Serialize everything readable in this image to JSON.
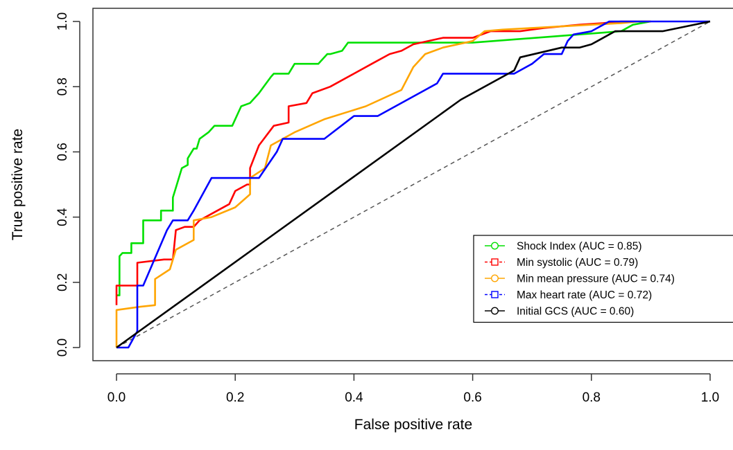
{
  "chart_data": {
    "type": "line",
    "title": "",
    "xlabel": "False positive rate",
    "ylabel": "True positive rate",
    "xlim": [
      0,
      1
    ],
    "ylim": [
      0,
      1
    ],
    "xticks": [
      "0.0",
      "0.2",
      "0.4",
      "0.6",
      "0.8",
      "1.0"
    ],
    "yticks": [
      "0.0",
      "0.2",
      "0.4",
      "0.6",
      "0.8",
      "1.0"
    ],
    "grid": false,
    "legend_position": "right",
    "reference_line": {
      "x": [
        0,
        1
      ],
      "y": [
        0,
        1
      ],
      "style": "dashed",
      "color": "#555555"
    },
    "series": [
      {
        "name": "Shock Index (AUC = 0.85)",
        "color": "#00e000",
        "marker": "circle",
        "x": [
          0,
          0.005,
          0.005,
          0.01,
          0.01,
          0.025,
          0.025,
          0.045,
          0.045,
          0.075,
          0.075,
          0.095,
          0.095,
          0.1,
          0.11,
          0.12,
          0.12,
          0.13,
          0.135,
          0.14,
          0.155,
          0.165,
          0.195,
          0.21,
          0.225,
          0.24,
          0.26,
          0.265,
          0.29,
          0.3,
          0.34,
          0.355,
          0.36,
          0.38,
          0.39,
          0.5,
          0.6,
          0.85,
          0.87,
          0.9
        ],
        "y": [
          0.16,
          0.16,
          0.28,
          0.29,
          0.29,
          0.29,
          0.32,
          0.32,
          0.39,
          0.39,
          0.42,
          0.42,
          0.46,
          0.49,
          0.55,
          0.56,
          0.58,
          0.61,
          0.61,
          0.64,
          0.66,
          0.68,
          0.68,
          0.74,
          0.75,
          0.78,
          0.83,
          0.84,
          0.84,
          0.87,
          0.87,
          0.9,
          0.9,
          0.91,
          0.935,
          0.935,
          0.935,
          0.97,
          0.99,
          1.0
        ]
      },
      {
        "name": "Min systolic (AUC = 0.79)",
        "color": "#ff0000",
        "marker": "square",
        "x": [
          0,
          0.0,
          0.025,
          0.025,
          0.035,
          0.035,
          0.08,
          0.08,
          0.095,
          0.1,
          0.115,
          0.13,
          0.14,
          0.17,
          0.19,
          0.2,
          0.22,
          0.225,
          0.225,
          0.24,
          0.265,
          0.29,
          0.29,
          0.32,
          0.33,
          0.36,
          0.4,
          0.43,
          0.46,
          0.48,
          0.5,
          0.55,
          0.6,
          0.63,
          0.68,
          0.72,
          0.78,
          0.82,
          0.85,
          0.9
        ],
        "y": [
          0.13,
          0.19,
          0.19,
          0.19,
          0.19,
          0.26,
          0.27,
          0.27,
          0.27,
          0.36,
          0.37,
          0.37,
          0.39,
          0.42,
          0.44,
          0.48,
          0.5,
          0.5,
          0.55,
          0.62,
          0.68,
          0.69,
          0.74,
          0.75,
          0.78,
          0.8,
          0.84,
          0.87,
          0.9,
          0.91,
          0.93,
          0.95,
          0.95,
          0.97,
          0.97,
          0.98,
          0.99,
          0.995,
          1.0,
          1.0
        ]
      },
      {
        "name": "Min mean pressure (AUC = 0.74)",
        "color": "#ffa500",
        "marker": "circle",
        "x": [
          0,
          0.0,
          0.04,
          0.065,
          0.065,
          0.09,
          0.1,
          0.13,
          0.13,
          0.16,
          0.2,
          0.225,
          0.225,
          0.25,
          0.26,
          0.3,
          0.35,
          0.42,
          0.48,
          0.5,
          0.52,
          0.55,
          0.6,
          0.62,
          0.65,
          0.7,
          0.8,
          0.85,
          0.88,
          0.9
        ],
        "y": [
          0.0,
          0.115,
          0.125,
          0.13,
          0.21,
          0.24,
          0.3,
          0.33,
          0.39,
          0.4,
          0.43,
          0.47,
          0.52,
          0.55,
          0.62,
          0.66,
          0.7,
          0.74,
          0.79,
          0.86,
          0.9,
          0.92,
          0.94,
          0.97,
          0.975,
          0.98,
          0.99,
          0.995,
          1.0,
          1.0
        ]
      },
      {
        "name": "Max heart rate (AUC = 0.72)",
        "color": "#0000ff",
        "marker": "square",
        "x": [
          0,
          0.02,
          0.035,
          0.035,
          0.045,
          0.085,
          0.095,
          0.12,
          0.13,
          0.16,
          0.22,
          0.24,
          0.27,
          0.28,
          0.35,
          0.4,
          0.44,
          0.53,
          0.54,
          0.55,
          0.63,
          0.67,
          0.7,
          0.72,
          0.75,
          0.76,
          0.77,
          0.8,
          0.81,
          0.82,
          0.83,
          1.0
        ],
        "y": [
          0.0,
          0.0,
          0.05,
          0.19,
          0.19,
          0.36,
          0.39,
          0.39,
          0.42,
          0.52,
          0.52,
          0.52,
          0.6,
          0.64,
          0.64,
          0.71,
          0.71,
          0.8,
          0.81,
          0.84,
          0.84,
          0.84,
          0.87,
          0.9,
          0.9,
          0.94,
          0.96,
          0.97,
          0.98,
          0.99,
          1.0,
          1.0
        ]
      },
      {
        "name": "Initial GCS (AUC = 0.60)",
        "color": "#000000",
        "marker": "circle",
        "x": [
          0,
          0.58,
          0.66,
          0.67,
          0.68,
          0.75,
          0.78,
          0.8,
          0.81,
          0.84,
          0.92,
          1.0
        ],
        "y": [
          0.0,
          0.76,
          0.84,
          0.85,
          0.89,
          0.92,
          0.92,
          0.93,
          0.94,
          0.97,
          0.97,
          1.0
        ]
      }
    ]
  }
}
